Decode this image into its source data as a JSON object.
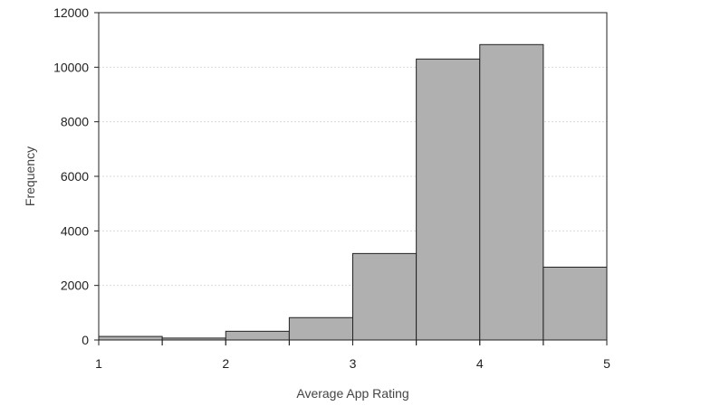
{
  "chart_data": {
    "type": "bar",
    "histogram": true,
    "bins": [
      {
        "start": 1.0,
        "end": 1.5,
        "value": 130
      },
      {
        "start": 1.5,
        "end": 2.0,
        "value": 70
      },
      {
        "start": 2.0,
        "end": 2.5,
        "value": 320
      },
      {
        "start": 2.5,
        "end": 3.0,
        "value": 820
      },
      {
        "start": 3.0,
        "end": 3.5,
        "value": 3170
      },
      {
        "start": 3.5,
        "end": 4.0,
        "value": 10300
      },
      {
        "start": 4.0,
        "end": 4.5,
        "value": 10830
      },
      {
        "start": 4.5,
        "end": 5.0,
        "value": 2670
      }
    ],
    "xlabel": "Average App Rating",
    "ylabel": "Frequency",
    "xlim": [
      1,
      5
    ],
    "ylim": [
      0,
      12000
    ],
    "xticks": [
      1,
      2,
      3,
      4,
      5
    ],
    "yticks": [
      0,
      2000,
      4000,
      6000,
      8000,
      10000,
      12000
    ],
    "grid": true,
    "colors": {
      "bar_fill": "#b0b0b0",
      "bar_stroke": "#222222"
    }
  }
}
